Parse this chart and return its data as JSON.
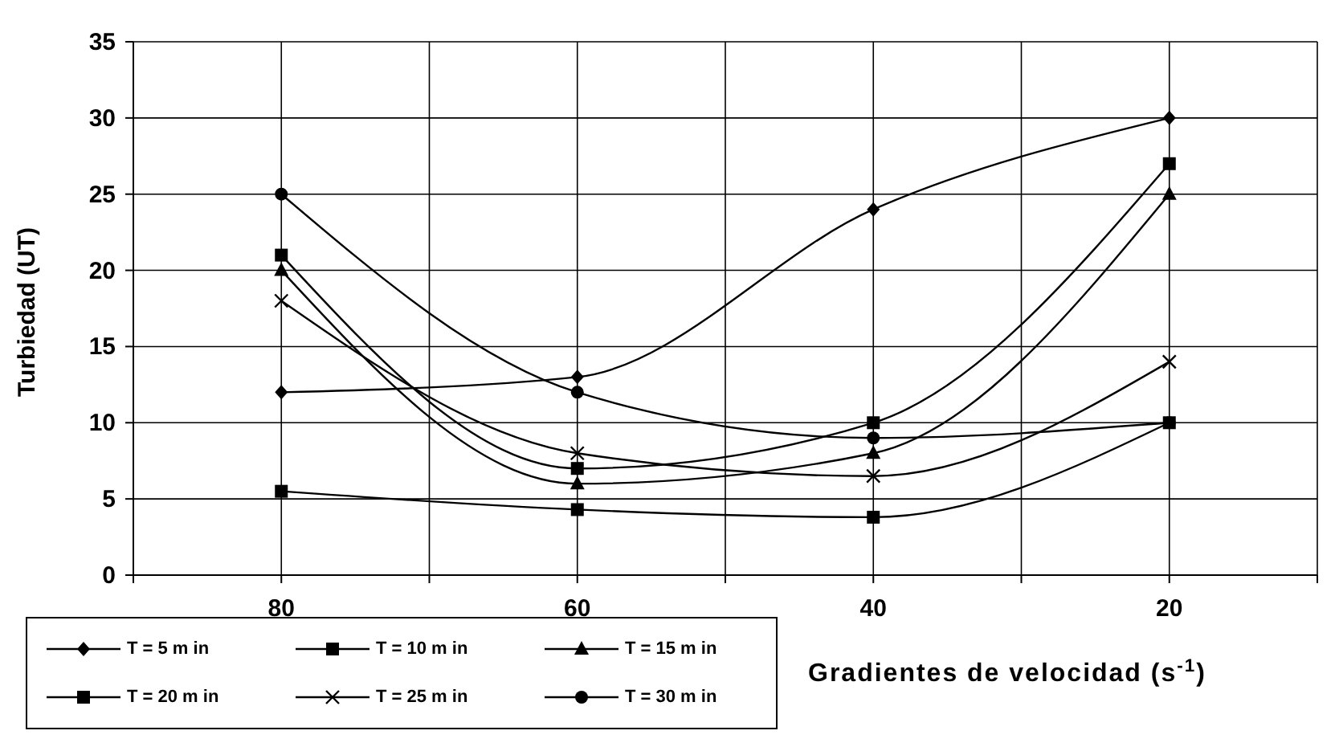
{
  "chart_data": {
    "type": "line",
    "xlabel": "Gradientes de velocidad (s$^{-1}$)",
    "ylabel": "Turbiedad (UT)",
    "x": [
      80,
      60,
      40,
      20
    ],
    "xlim": [
      90,
      10
    ],
    "xticks": [
      {
        "value": 90,
        "label": null
      },
      80,
      {
        "value": 70,
        "label": null
      },
      60,
      {
        "value": 50,
        "label": null
      },
      40,
      {
        "value": 30,
        "label": null
      },
      20,
      {
        "value": 10,
        "label": null
      }
    ],
    "ylim": [
      0,
      35
    ],
    "yticks": [
      0,
      5,
      10,
      15,
      20,
      25,
      30,
      35
    ],
    "grid": true,
    "legend": "bottom left",
    "line_style": "solid",
    "series": [
      {
        "name": "T = 5 m in",
        "color": "#000000",
        "marker": "diamond",
        "values": [
          12,
          13,
          24,
          30
        ]
      },
      {
        "name": "T = 10 m in",
        "color": "#000000",
        "marker": "square",
        "values": [
          21,
          7,
          10,
          27
        ]
      },
      {
        "name": "T = 15 m in",
        "color": "#000000",
        "marker": "triangle",
        "values": [
          20,
          6,
          8,
          25
        ]
      },
      {
        "name": "T = 20 m in",
        "color": "#000000",
        "marker": "square",
        "values": [
          5.5,
          4.3,
          3.8,
          10
        ]
      },
      {
        "name": "T = 25 m in",
        "color": "#000000",
        "marker": "cross",
        "values": [
          18,
          8,
          6.5,
          14
        ]
      },
      {
        "name": "T = 30 m in",
        "color": "#000000",
        "marker": "circle",
        "values": [
          25,
          12,
          9,
          10
        ]
      }
    ]
  }
}
